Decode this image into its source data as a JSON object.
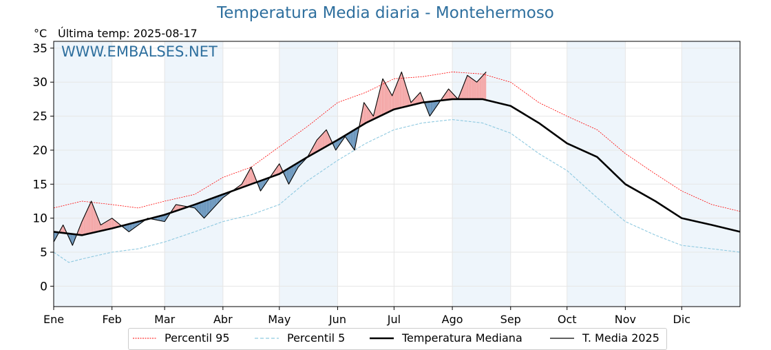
{
  "header": {
    "title": "Temperatura Media diaria - Montehermoso",
    "unit": "°C",
    "last_temp": "Última temp: 2025-08-17",
    "watermark": "WWW.EMBALSES.NET"
  },
  "legend": {
    "p95": "Percentil 95",
    "p5": "Percentil 5",
    "median": "Temperatura Mediana",
    "current": "T. Media 2025"
  },
  "colors": {
    "title": "#2e6f9e",
    "p95": "#ff0000",
    "p5": "#8ec9e0",
    "median": "#000000",
    "current": "#000000",
    "above_fill": "#f4a7a7",
    "below_fill": "#6a96bd",
    "shade": "#eef5fb"
  },
  "chart_data": {
    "type": "line",
    "title": "Temperatura Media diaria - Montehermoso",
    "ylabel": "°C",
    "ylim": [
      -3,
      36
    ],
    "xlim": [
      0,
      365
    ],
    "yticks": [
      0,
      5,
      10,
      15,
      20,
      25,
      30,
      35
    ],
    "month_labels": [
      "Ene",
      "Feb",
      "Mar",
      "Abr",
      "May",
      "Jun",
      "Jul",
      "Ago",
      "Sep",
      "Oct",
      "Nov",
      "Dic"
    ],
    "month_starts": [
      0,
      31,
      59,
      90,
      120,
      151,
      181,
      212,
      243,
      273,
      304,
      334
    ],
    "shaded_months": [
      0,
      2,
      4,
      7,
      9,
      11
    ],
    "grid": true,
    "legend_position": "bottom",
    "series": [
      {
        "name": "Percentil 95",
        "style": "dotted-red",
        "points": [
          [
            0,
            11.5
          ],
          [
            15,
            12.5
          ],
          [
            31,
            12
          ],
          [
            45,
            11.5
          ],
          [
            59,
            12.5
          ],
          [
            75,
            13.5
          ],
          [
            90,
            16
          ],
          [
            105,
            17.5
          ],
          [
            120,
            20.5
          ],
          [
            135,
            23.5
          ],
          [
            151,
            27
          ],
          [
            166,
            28.5
          ],
          [
            181,
            30.5
          ],
          [
            196,
            30.8
          ],
          [
            212,
            31.5
          ],
          [
            228,
            31.2
          ],
          [
            243,
            30
          ],
          [
            258,
            27
          ],
          [
            273,
            25
          ],
          [
            289,
            23
          ],
          [
            304,
            19.5
          ],
          [
            320,
            16.5
          ],
          [
            334,
            14
          ],
          [
            350,
            12
          ],
          [
            365,
            11
          ]
        ]
      },
      {
        "name": "Percentil 5",
        "style": "dashed-lightblue",
        "points": [
          [
            0,
            5
          ],
          [
            8,
            3.5
          ],
          [
            15,
            4
          ],
          [
            31,
            5
          ],
          [
            45,
            5.5
          ],
          [
            59,
            6.5
          ],
          [
            75,
            8
          ],
          [
            90,
            9.5
          ],
          [
            105,
            10.5
          ],
          [
            120,
            12
          ],
          [
            135,
            15.5
          ],
          [
            151,
            18.5
          ],
          [
            166,
            21
          ],
          [
            181,
            23
          ],
          [
            196,
            24
          ],
          [
            212,
            24.5
          ],
          [
            228,
            24
          ],
          [
            243,
            22.5
          ],
          [
            258,
            19.5
          ],
          [
            273,
            17
          ],
          [
            289,
            13
          ],
          [
            304,
            9.5
          ],
          [
            320,
            7.5
          ],
          [
            334,
            6
          ],
          [
            350,
            5.5
          ],
          [
            365,
            5
          ]
        ]
      },
      {
        "name": "Temperatura Mediana",
        "style": "solid-thick-black",
        "points": [
          [
            0,
            8
          ],
          [
            15,
            7.5
          ],
          [
            31,
            8.5
          ],
          [
            45,
            9.5
          ],
          [
            59,
            10.5
          ],
          [
            75,
            12
          ],
          [
            90,
            13.5
          ],
          [
            105,
            15
          ],
          [
            120,
            16.5
          ],
          [
            135,
            19
          ],
          [
            151,
            21.5
          ],
          [
            166,
            24
          ],
          [
            181,
            26
          ],
          [
            196,
            27
          ],
          [
            212,
            27.5
          ],
          [
            228,
            27.5
          ],
          [
            243,
            26.5
          ],
          [
            258,
            24
          ],
          [
            273,
            21
          ],
          [
            289,
            19
          ],
          [
            304,
            15
          ],
          [
            320,
            12.5
          ],
          [
            334,
            10
          ],
          [
            350,
            9
          ],
          [
            365,
            8
          ]
        ]
      },
      {
        "name": "T. Media 2025",
        "style": "solid-thin-black",
        "points": [
          [
            0,
            6.5
          ],
          [
            5,
            9
          ],
          [
            10,
            6
          ],
          [
            15,
            9.5
          ],
          [
            20,
            12.5
          ],
          [
            25,
            9
          ],
          [
            31,
            10
          ],
          [
            40,
            8
          ],
          [
            50,
            10
          ],
          [
            59,
            9.5
          ],
          [
            65,
            12
          ],
          [
            75,
            11.5
          ],
          [
            80,
            10
          ],
          [
            90,
            13
          ],
          [
            100,
            15
          ],
          [
            105,
            17.5
          ],
          [
            110,
            14
          ],
          [
            115,
            16
          ],
          [
            120,
            18
          ],
          [
            125,
            15
          ],
          [
            130,
            17.5
          ],
          [
            135,
            19
          ],
          [
            140,
            21.5
          ],
          [
            145,
            23
          ],
          [
            150,
            20
          ],
          [
            155,
            22
          ],
          [
            160,
            20
          ],
          [
            165,
            27
          ],
          [
            170,
            25
          ],
          [
            175,
            30.5
          ],
          [
            180,
            28
          ],
          [
            185,
            31.5
          ],
          [
            190,
            27
          ],
          [
            195,
            28.5
          ],
          [
            200,
            25
          ],
          [
            205,
            27
          ],
          [
            210,
            29
          ],
          [
            215,
            27.5
          ],
          [
            220,
            31
          ],
          [
            225,
            30
          ],
          [
            230,
            31.5
          ]
        ]
      }
    ]
  }
}
